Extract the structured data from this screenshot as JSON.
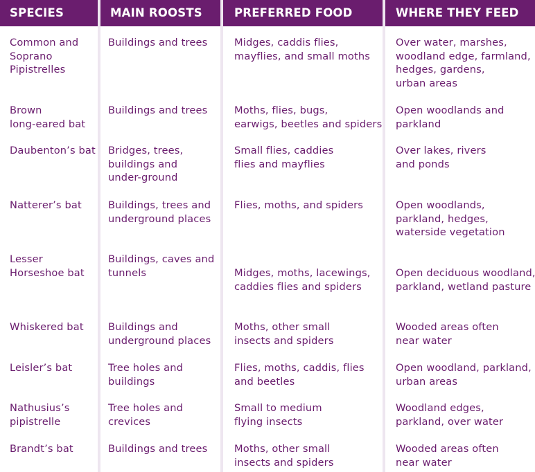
{
  "headers": [
    "SPECIES",
    "MAIN ROOSTS",
    "PREFERRED FOOD",
    "WHERE THEY FEED"
  ],
  "rows": [
    {
      "species": "Common and\nSoprano\nPipistrelles",
      "roosts": "Buildings and trees",
      "food": "Midges, caddis flies,\nmayflies, and small moths",
      "feed": "Over water, marshes,\nwoodland edge, farmland,\nhedges, gardens,\nurban areas"
    },
    {
      "species": "Brown\nlong-eared bat",
      "roosts": "Buildings and trees",
      "food": "Moths, flies, bugs,\nearwigs, beetles and spiders",
      "feed": "Open woodlands and\nparkland"
    },
    {
      "species": "Daubenton’s bat",
      "roosts": "Bridges, trees,\nbuildings and\nunder-ground",
      "food": "Small flies, caddies\nflies and mayflies",
      "feed": "Over lakes, rivers\nand ponds"
    },
    {
      "species": "Natterer’s bat",
      "roosts": "Buildings, trees and\nunderground places",
      "food": "Flies, moths, and spiders",
      "feed": "Open woodlands,\nparkland, hedges,\nwaterside vegetation"
    },
    {
      "species": "Lesser\nHorseshoe bat",
      "roosts": "Buildings, caves and\ntunnels",
      "food": "Midges, moths, lacewings,\ncaddies flies and spiders",
      "feed": "Open deciduous woodland,\nparkland, wetland pasture"
    },
    {
      "species": "Whiskered bat",
      "roosts": "Buildings and\nunderground places",
      "food": "Moths, other small\ninsects and spiders",
      "feed": "Wooded areas often\nnear water"
    },
    {
      "species": "Leisler’s bat",
      "roosts": "Tree holes and\nbuildings",
      "food": "Flies, moths, caddis, flies\nand beetles",
      "feed": "Open woodland, parkland,\nurban areas"
    },
    {
      "species": "Nathusius’s\npipistrelle",
      "roosts": "Tree holes and\ncrevices",
      "food": "Small to medium\nflying insects",
      "feed": "Woodland edges,\nparkland, over water"
    },
    {
      "species": "Brandt’s bat",
      "roosts": "Buildings and trees",
      "food": "Moths, other small\ninsects and spiders",
      "feed": "Wooded areas often\nnear water"
    }
  ],
  "colors": {
    "header_bg": "#6a1d6e",
    "header_text": "#ffffff",
    "body_text": "#6a1d6e",
    "divider": "#eee6f0"
  }
}
